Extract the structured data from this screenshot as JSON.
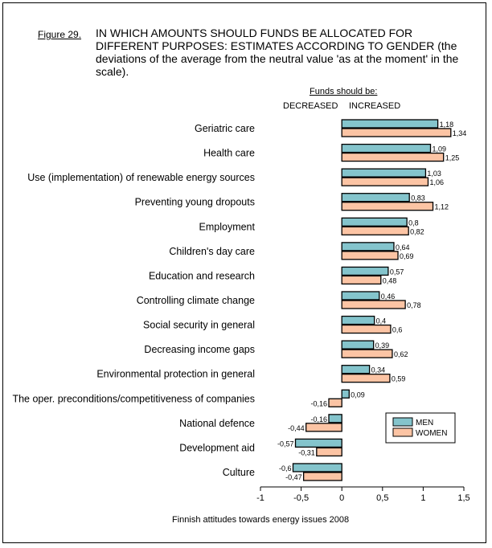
{
  "figure_label": "Figure 29.",
  "footer": "Finnish attitudes towards energy issues 2008",
  "colors": {
    "men": "#84C4CC",
    "women": "#FCC4A4"
  },
  "chart_data": {
    "type": "bar",
    "orientation": "horizontal",
    "title": "IN WHICH AMOUNTS SHOULD FUNDS BE ALLOCATED FOR DIFFERENT PURPOSES: ESTIMATES ACCORDING TO GENDER (the deviations of the average from the neutral value 'as at the moment' in the scale).",
    "header": "Funds should be:",
    "direction_labels": [
      "DECREASED",
      "INCREASED"
    ],
    "categories": [
      "Geriatric care",
      "Health care",
      "Use (implementation) of renewable energy sources",
      "Preventing young dropouts",
      "Employment",
      "Children's day care",
      "Education and research",
      "Controlling climate change",
      "Social security in general",
      "Decreasing income gaps",
      "Environmental protection in general",
      "The oper. preconditions/competitiveness of companies",
      "National defence",
      "Development aid",
      "Culture"
    ],
    "series": [
      {
        "name": "MEN",
        "values": [
          1.18,
          1.09,
          1.03,
          0.83,
          0.8,
          0.64,
          0.57,
          0.46,
          0.4,
          0.39,
          0.34,
          0.09,
          -0.16,
          -0.57,
          -0.6
        ],
        "labels": [
          "1,18",
          "1,09",
          "1,03",
          "0,83",
          "0,8",
          "0,64",
          "0,57",
          "0,46",
          "0,4",
          "0,39",
          "0,34",
          "0,09",
          "-0,16",
          "-0,57",
          "-0,6"
        ]
      },
      {
        "name": "WOMEN",
        "values": [
          1.34,
          1.25,
          1.06,
          1.12,
          0.82,
          0.69,
          0.48,
          0.78,
          0.6,
          0.62,
          0.59,
          -0.16,
          -0.44,
          -0.31,
          -0.47
        ],
        "labels": [
          "1,34",
          "1,25",
          "1,06",
          "1,12",
          "0,82",
          "0,69",
          "0,48",
          "0,78",
          "0,6",
          "0,62",
          "0,59",
          "-0,16",
          "-0,44",
          "-0,31",
          "-0,47"
        ]
      }
    ],
    "xlim": [
      -1,
      1.5
    ],
    "xticks": [
      -1,
      -0.5,
      0,
      0.5,
      1,
      1.5
    ],
    "xtick_labels": [
      "-1",
      "-0,5",
      "0",
      "0,5",
      "1",
      "1,5"
    ],
    "legend": "right",
    "grid": false
  }
}
